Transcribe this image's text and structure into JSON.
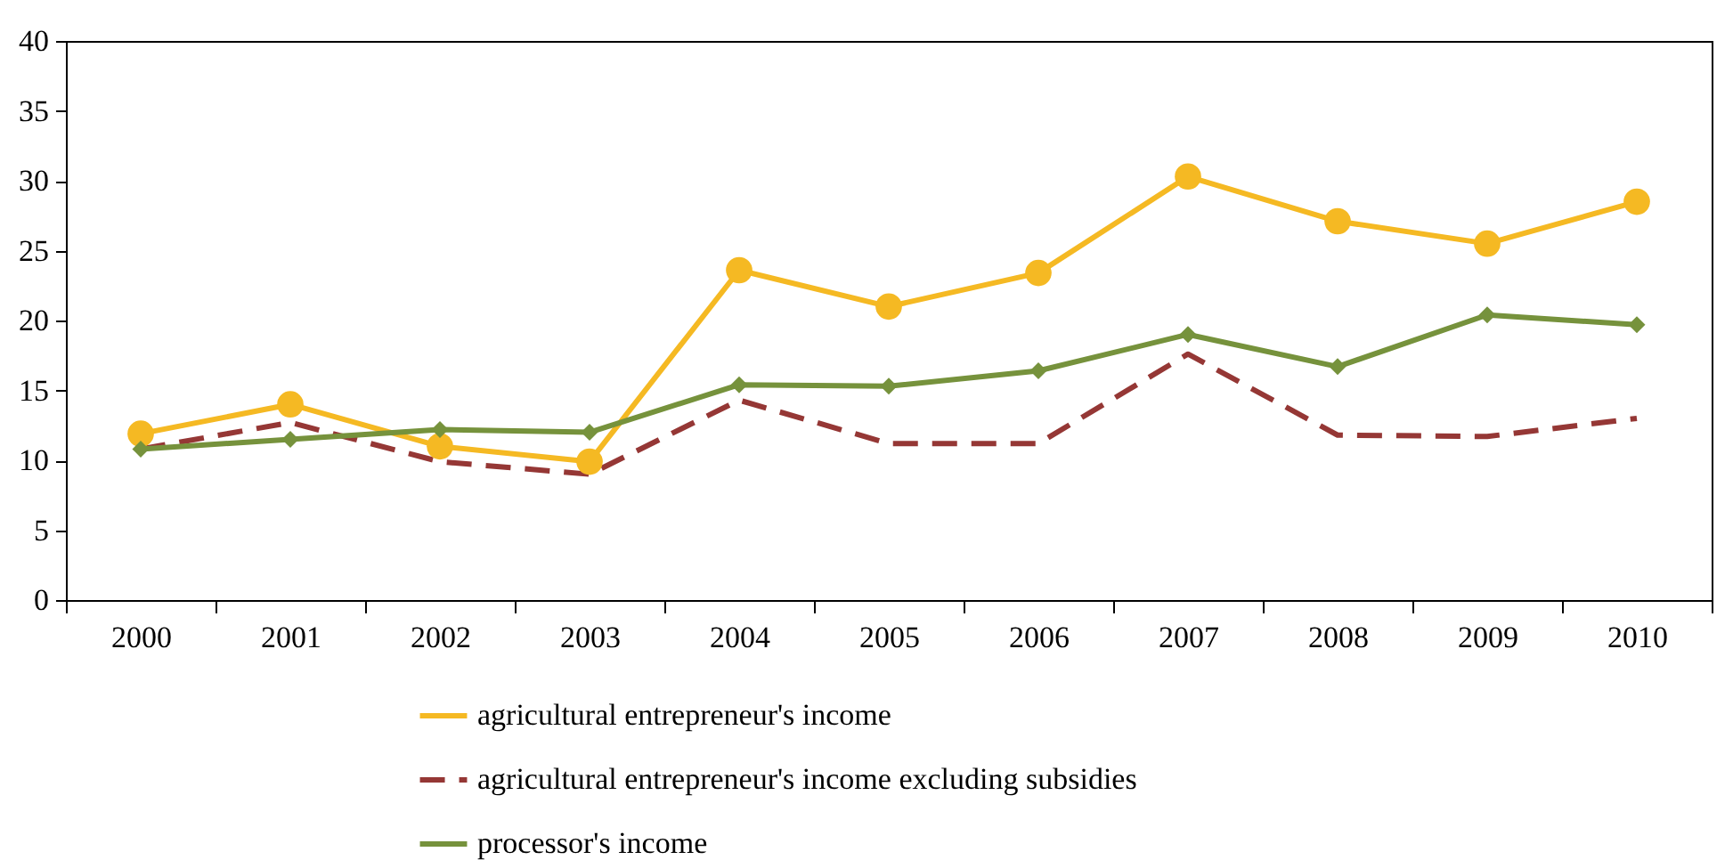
{
  "chart_data": {
    "type": "line",
    "categories": [
      "2000",
      "2001",
      "2002",
      "2003",
      "2004",
      "2005",
      "2006",
      "2007",
      "2008",
      "2009",
      "2010"
    ],
    "series": [
      {
        "name": "agricultural entrepreneur's income",
        "color": "#f5b923",
        "marker": "circle",
        "line_style": "solid",
        "values": [
          11.9,
          14,
          11,
          9.9,
          23.6,
          21,
          23.4,
          30.3,
          27.1,
          25.5,
          28.5
        ]
      },
      {
        "name": "agricultural entrepreneur's income excluding subsidies",
        "color": "#953735",
        "marker": "none",
        "line_style": "dashed",
        "values": [
          10.8,
          12.7,
          9.9,
          9,
          14.3,
          11.2,
          11.2,
          17.6,
          11.8,
          11.7,
          13
        ]
      },
      {
        "name": "processor's income",
        "color": "#76923c",
        "marker": "diamond",
        "line_style": "solid",
        "values": [
          10.8,
          11.5,
          12.2,
          12,
          15.4,
          15.3,
          16.4,
          19,
          16.7,
          20.4,
          19.7
        ]
      }
    ],
    "ylim": [
      0,
      40
    ],
    "yticks": [
      0,
      5,
      10,
      15,
      20,
      25,
      30,
      35,
      40
    ],
    "grid": false,
    "legend": "bottom"
  }
}
